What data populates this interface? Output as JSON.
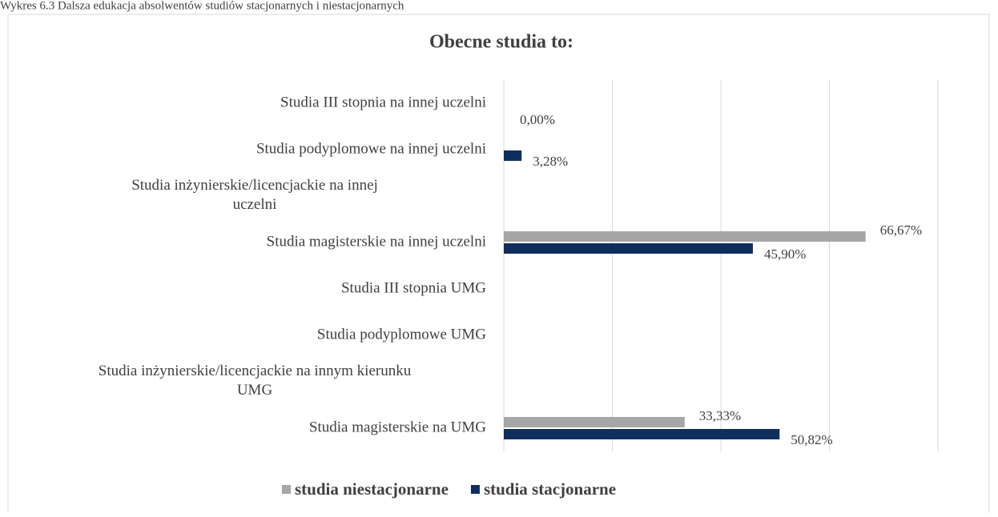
{
  "caption": "Wykres 6.3 Dalsza edukacja absolwentów studiów stacjonarnych i niestacjonarnych",
  "chart_data": {
    "type": "barh",
    "title": "Obecne studia to:",
    "categories": [
      "Studia III stopnia na innej uczelni",
      "Studia podyplomowe na innej uczelni",
      "Studia inżynierskie/licencjackie na innej uczelni",
      "Studia magisterskie na innej uczelni",
      "Studia III stopnia UMG",
      "Studia podyplomowe UMG",
      "Studia inżynierskie/licencjackie na innym kierunku UMG",
      "Studia magisterskie na UMG"
    ],
    "series": [
      {
        "name": "studia niestacjonarne",
        "color": "#a6a6a6",
        "values": [
          null,
          0,
          null,
          66.67,
          null,
          null,
          null,
          33.33
        ],
        "value_labels": [
          null,
          "0,00%",
          null,
          "66,67%",
          null,
          null,
          null,
          "33,33%"
        ]
      },
      {
        "name": "studia stacjonarne",
        "color": "#0e2f5e",
        "values": [
          null,
          3.28,
          null,
          45.9,
          null,
          null,
          null,
          50.82
        ],
        "value_labels": [
          null,
          "3,28%",
          null,
          "45,90%",
          null,
          null,
          null,
          "50,82%"
        ]
      }
    ],
    "xlim": [
      0,
      80
    ],
    "xticks": [
      0,
      20,
      40,
      60,
      80
    ],
    "grid": true,
    "legend": "bottom"
  }
}
